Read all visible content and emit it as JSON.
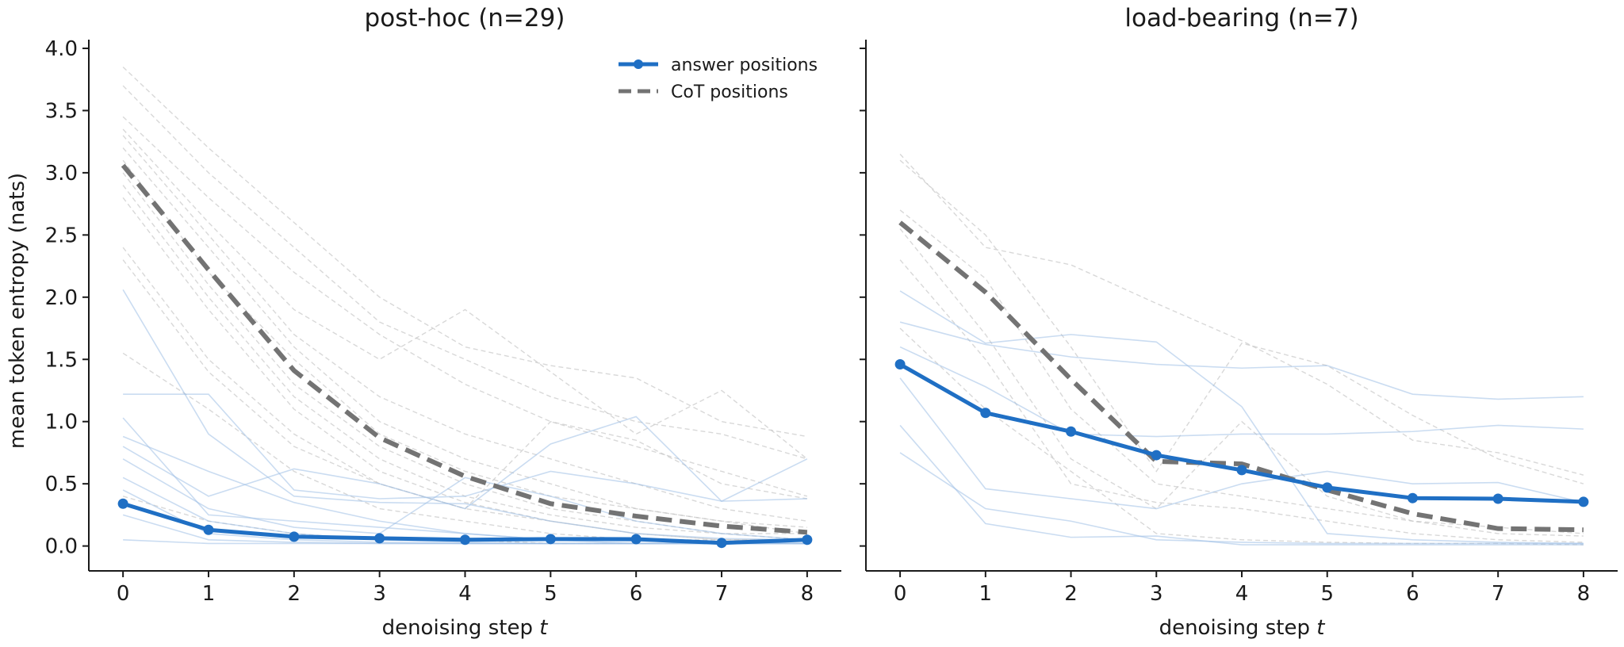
{
  "chart_data": [
    {
      "type": "line",
      "title": "post-hoc (n=29)",
      "xlabel_text": "denoising step",
      "xlabel_var": "t",
      "ylabel": "mean token entropy (nats)",
      "x": [
        0,
        1,
        2,
        3,
        4,
        5,
        6,
        7,
        8
      ],
      "xlim": [
        -0.4,
        8.4
      ],
      "ylim": [
        -0.2,
        4.07
      ],
      "xticks": [
        "0",
        "1",
        "2",
        "3",
        "4",
        "5",
        "6",
        "7",
        "8"
      ],
      "yticks": [
        "0.0",
        "0.5",
        "1.0",
        "1.5",
        "2.0",
        "2.5",
        "3.0",
        "3.5",
        "4.0"
      ],
      "grid": false,
      "legend": {
        "placement": "top-right",
        "entries": [
          {
            "label": "answer positions",
            "style": "solid-marker",
            "color": "#1f6fc4"
          },
          {
            "label": "CoT positions",
            "style": "dashed",
            "color": "#737373"
          }
        ]
      },
      "series": [
        {
          "name": "answer positions",
          "color": "#1f6fc4",
          "style": "solid-marker",
          "values": [
            0.34,
            0.13,
            0.075,
            0.062,
            0.05,
            0.056,
            0.055,
            0.025,
            0.05
          ]
        },
        {
          "name": "CoT positions",
          "color": "#737373",
          "style": "dashed",
          "values": [
            3.06,
            2.22,
            1.41,
            0.87,
            0.56,
            0.34,
            0.24,
            0.16,
            0.11
          ]
        }
      ],
      "individual_answer": [
        [
          1.22,
          1.22,
          0.45,
          0.38,
          0.4,
          0.6,
          0.5,
          0.36,
          0.38
        ],
        [
          2.06,
          0.9,
          0.4,
          0.35,
          0.34,
          0.2,
          0.1,
          0.06,
          0.05
        ],
        [
          1.03,
          0.25,
          0.2,
          0.15,
          0.1,
          0.05,
          0.04,
          0.03,
          0.02
        ],
        [
          0.88,
          0.6,
          0.35,
          0.2,
          0.1,
          0.05,
          0.02,
          0.02,
          0.02
        ],
        [
          0.8,
          0.4,
          0.62,
          0.5,
          0.3,
          0.82,
          1.04,
          0.36,
          0.7
        ],
        [
          0.7,
          0.3,
          0.15,
          0.1,
          0.55,
          0.4,
          0.2,
          0.1,
          0.05
        ],
        [
          0.55,
          0.2,
          0.1,
          0.05,
          0.03,
          0.02,
          0.02,
          0.02,
          0.02
        ],
        [
          0.45,
          0.1,
          0.05,
          0.03,
          0.02,
          0.02,
          0.02,
          0.02,
          0.02
        ],
        [
          0.25,
          0.05,
          0.03,
          0.02,
          0.02,
          0.02,
          0.02,
          0.02,
          0.02
        ],
        [
          0.05,
          0.02,
          0.02,
          0.02,
          0.02,
          0.02,
          0.02,
          0.02,
          0.02
        ]
      ],
      "individual_cot": [
        [
          3.85,
          3.2,
          2.6,
          2.0,
          1.6,
          1.45,
          1.35,
          1.0,
          0.88
        ],
        [
          3.7,
          3.0,
          2.4,
          1.8,
          1.5,
          1.2,
          1.0,
          0.9,
          0.7
        ],
        [
          3.45,
          2.8,
          2.2,
          1.7,
          1.3,
          1.0,
          0.8,
          0.6,
          0.4
        ],
        [
          3.35,
          2.6,
          1.9,
          1.5,
          1.9,
          1.4,
          0.9,
          1.25,
          0.7
        ],
        [
          3.3,
          2.5,
          1.7,
          1.2,
          0.9,
          0.7,
          0.5,
          0.3,
          0.2
        ],
        [
          3.2,
          2.4,
          1.6,
          1.0,
          0.7,
          0.5,
          0.3,
          0.2,
          0.1
        ],
        [
          3.1,
          2.2,
          1.5,
          0.9,
          0.6,
          0.4,
          0.3,
          0.2,
          0.15
        ],
        [
          3.0,
          2.1,
          1.3,
          0.8,
          0.5,
          0.3,
          0.2,
          0.1,
          0.1
        ],
        [
          2.9,
          2.0,
          1.2,
          0.7,
          0.4,
          0.25,
          0.15,
          0.1,
          0.05
        ],
        [
          2.8,
          1.9,
          1.1,
          0.6,
          0.35,
          0.2,
          0.1,
          0.05,
          0.05
        ],
        [
          2.4,
          1.5,
          0.9,
          0.5,
          0.3,
          0.2,
          0.1,
          0.05,
          0.05
        ],
        [
          2.3,
          1.4,
          0.8,
          0.5,
          0.3,
          1.0,
          0.85,
          0.5,
          0.38
        ],
        [
          1.55,
          1.1,
          0.6,
          0.3,
          0.2,
          0.1,
          0.05,
          0.05,
          0.05
        ],
        [
          0.4,
          0.2,
          0.1,
          0.05,
          0.05,
          0.02,
          0.02,
          0.02,
          0.02
        ]
      ]
    },
    {
      "type": "line",
      "title": "load-bearing (n=7)",
      "xlabel_text": "denoising step",
      "xlabel_var": "t",
      "ylabel": "",
      "x": [
        0,
        1,
        2,
        3,
        4,
        5,
        6,
        7,
        8
      ],
      "xlim": [
        -0.4,
        8.4
      ],
      "ylim": [
        -0.2,
        4.07
      ],
      "xticks": [
        "0",
        "1",
        "2",
        "3",
        "4",
        "5",
        "6",
        "7",
        "8"
      ],
      "yticks": [],
      "grid": false,
      "series": [
        {
          "name": "answer positions",
          "color": "#1f6fc4",
          "style": "solid-marker",
          "values": [
            1.46,
            1.07,
            0.92,
            0.73,
            0.61,
            0.47,
            0.385,
            0.38,
            0.355
          ]
        },
        {
          "name": "CoT positions",
          "color": "#737373",
          "style": "dashed",
          "values": [
            2.6,
            2.04,
            1.34,
            0.68,
            0.66,
            0.45,
            0.26,
            0.14,
            0.13
          ]
        }
      ],
      "individual_answer": [
        [
          2.05,
          1.63,
          1.7,
          1.64,
          1.12,
          0.1,
          0.05,
          0.03,
          0.02
        ],
        [
          1.8,
          1.62,
          1.52,
          1.46,
          1.43,
          1.45,
          1.22,
          1.18,
          1.2
        ],
        [
          1.6,
          1.28,
          0.9,
          0.88,
          0.9,
          0.9,
          0.92,
          0.97,
          0.94
        ],
        [
          1.35,
          0.46,
          0.38,
          0.3,
          0.5,
          0.6,
          0.5,
          0.51,
          0.35
        ],
        [
          0.97,
          0.18,
          0.07,
          0.08,
          0.01,
          0.01,
          0.01,
          0.01,
          0.01
        ],
        [
          0.75,
          0.3,
          0.2,
          0.05,
          0.03,
          0.02,
          0.02,
          0.02,
          0.02
        ]
      ],
      "individual_cot": [
        [
          3.15,
          2.4,
          2.26,
          1.95,
          1.65,
          1.3,
          0.85,
          0.75,
          0.57
        ],
        [
          3.1,
          2.5,
          1.6,
          0.6,
          1.63,
          1.45,
          1.05,
          0.7,
          0.5
        ],
        [
          2.7,
          2.15,
          1.1,
          0.5,
          0.4,
          0.3,
          0.2,
          0.15,
          0.1
        ],
        [
          2.55,
          1.7,
          0.7,
          0.3,
          1.0,
          0.4,
          0.2,
          0.1,
          0.08
        ],
        [
          2.3,
          1.5,
          0.5,
          0.35,
          0.3,
          0.2,
          0.1,
          0.05,
          0.03
        ],
        [
          1.75,
          1.1,
          0.6,
          0.1,
          0.05,
          0.03,
          0.02,
          0.02,
          0.01
        ]
      ]
    }
  ]
}
